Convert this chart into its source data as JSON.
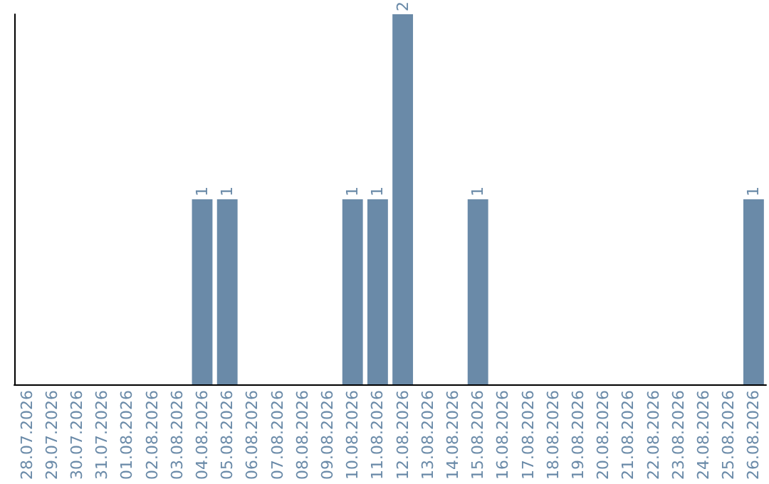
{
  "chart_data": {
    "type": "bar",
    "categories": [
      "28.07.2026",
      "29.07.2026",
      "30.07.2026",
      "31.07.2026",
      "01.08.2026",
      "02.08.2026",
      "03.08.2026",
      "04.08.2026",
      "05.08.2026",
      "06.08.2026",
      "07.08.2026",
      "08.08.2026",
      "09.08.2026",
      "10.08.2026",
      "11.08.2026",
      "12.08.2026",
      "13.08.2026",
      "14.08.2026",
      "15.08.2026",
      "16.08.2026",
      "17.08.2026",
      "18.08.2026",
      "19.08.2026",
      "20.08.2026",
      "21.08.2026",
      "22.08.2026",
      "23.08.2026",
      "24.08.2026",
      "25.08.2026",
      "26.08.2026"
    ],
    "values": [
      0,
      0,
      0,
      0,
      0,
      0,
      0,
      1,
      1,
      0,
      0,
      0,
      0,
      1,
      1,
      2,
      0,
      0,
      1,
      0,
      0,
      0,
      0,
      0,
      0,
      0,
      0,
      0,
      0,
      1
    ],
    "value_labels": [
      null,
      null,
      null,
      null,
      null,
      null,
      null,
      "1",
      "1",
      null,
      null,
      null,
      null,
      "1",
      "1",
      "2",
      null,
      null,
      "1",
      null,
      null,
      null,
      null,
      null,
      null,
      null,
      null,
      null,
      null,
      "1"
    ],
    "color": "#6a8aa8",
    "grid": false,
    "tick_labels": "x"
  }
}
